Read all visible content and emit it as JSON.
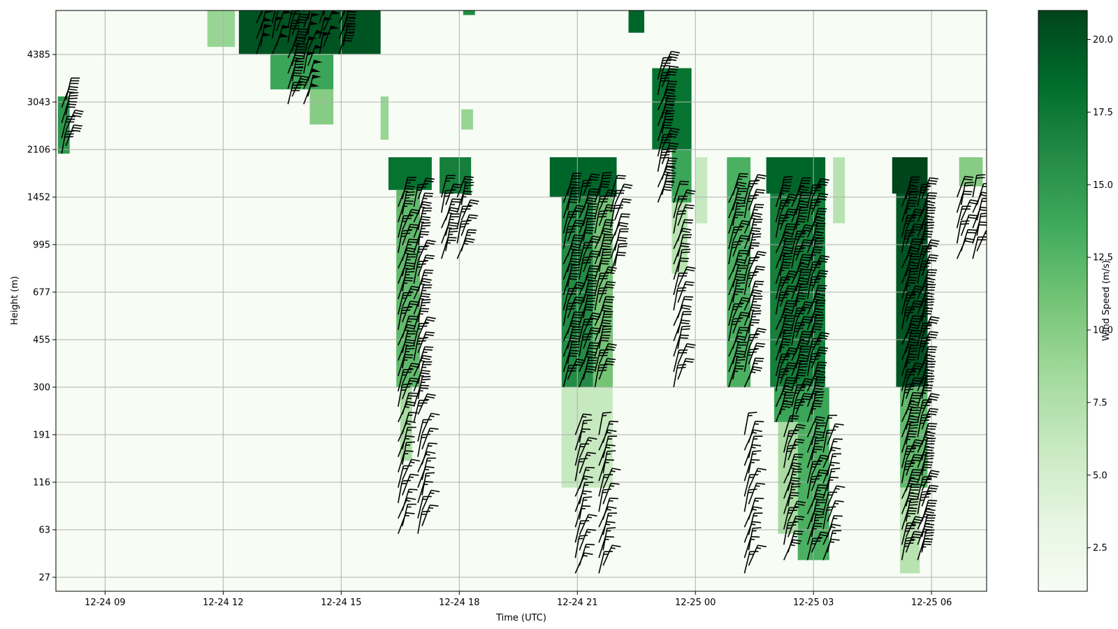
{
  "chart_data": {
    "type": "heatmap",
    "xlabel": "Time (UTC)",
    "ylabel": "Height (m)",
    "x_ticks": [
      "12-24 09",
      "12-24 12",
      "12-24 15",
      "12-24 18",
      "12-24 21",
      "12-25 00",
      "12-25 03",
      "12-25 06"
    ],
    "x_tick_hours": [
      9,
      12,
      15,
      18,
      21,
      24,
      27,
      30
    ],
    "x_range_hours": [
      7.75,
      31.4
    ],
    "y_ticks": [
      "27",
      "63",
      "116",
      "191",
      "300",
      "455",
      "677",
      "995",
      "1452",
      "2106",
      "3043",
      "4385"
    ],
    "y_tick_heights_m": [
      27,
      63,
      116,
      191,
      300,
      455,
      677,
      995,
      1452,
      2106,
      3043,
      4385
    ],
    "colorbar": {
      "label": "Wind Speed (m/s)",
      "range": [
        1.0,
        21.0
      ],
      "ticks": [
        "2.5",
        "5.0",
        "7.5",
        "10.0",
        "12.5",
        "15.0",
        "17.5",
        "20.0"
      ],
      "tick_values": [
        2.5,
        5.0,
        7.5,
        10.0,
        12.5,
        15.0,
        17.5,
        20.0
      ],
      "colormap": "Greens",
      "colors": [
        "#f7fcf5",
        "#e5f5e0",
        "#c7e9c0",
        "#a1d99b",
        "#74c476",
        "#41ab5d",
        "#238b45",
        "#006d2c",
        "#00441b"
      ]
    },
    "grid": true,
    "background_speed": 1.0,
    "regions": [
      {
        "t": [
          7.8,
          8.1
        ],
        "z": [
          2050,
          3200
        ],
        "speed": 15
      },
      {
        "t": [
          11.6,
          12.3
        ],
        "z": [
          4600,
          6200
        ],
        "speed": 9
      },
      {
        "t": [
          12.4,
          16.0
        ],
        "z": [
          4400,
          6200
        ],
        "speed": 20
      },
      {
        "t": [
          13.2,
          14.8
        ],
        "z": [
          3400,
          4400
        ],
        "speed": 14
      },
      {
        "t": [
          14.2,
          14.8
        ],
        "z": [
          2600,
          3400
        ],
        "speed": 10
      },
      {
        "t": [
          16.0,
          16.2
        ],
        "z": [
          2300,
          3200
        ],
        "speed": 9
      },
      {
        "t": [
          16.2,
          17.3
        ],
        "z": [
          1550,
          2000
        ],
        "speed": 18
      },
      {
        "t": [
          16.4,
          17.0
        ],
        "z": [
          300,
          1550
        ],
        "speed": 12
      },
      {
        "t": [
          16.5,
          16.8
        ],
        "z": [
          150,
          300
        ],
        "speed": 8
      },
      {
        "t": [
          17.5,
          18.3
        ],
        "z": [
          1500,
          2000
        ],
        "speed": 17
      },
      {
        "t": [
          18.1,
          18.4
        ],
        "z": [
          5500,
          6200
        ],
        "speed": 16
      },
      {
        "t": [
          18.05,
          18.35
        ],
        "z": [
          2500,
          2900
        ],
        "speed": 9
      },
      {
        "t": [
          20.3,
          22.0
        ],
        "z": [
          1450,
          2000
        ],
        "speed": 19
      },
      {
        "t": [
          20.6,
          21.4
        ],
        "z": [
          300,
          1450
        ],
        "speed": 16
      },
      {
        "t": [
          21.4,
          21.9
        ],
        "z": [
          300,
          1450
        ],
        "speed": 11
      },
      {
        "t": [
          20.6,
          21.9
        ],
        "z": [
          110,
          300
        ],
        "speed": 6
      },
      {
        "t": [
          22.3,
          22.7
        ],
        "z": [
          5000,
          6200
        ],
        "speed": 19
      },
      {
        "t": [
          22.9,
          23.9
        ],
        "z": [
          2100,
          4000
        ],
        "speed": 18
      },
      {
        "t": [
          23.4,
          23.9
        ],
        "z": [
          1400,
          2100
        ],
        "speed": 14
      },
      {
        "t": [
          23.4,
          23.8
        ],
        "z": [
          800,
          1400
        ],
        "speed": 7
      },
      {
        "t": [
          24.8,
          25.4
        ],
        "z": [
          300,
          2000
        ],
        "speed": 13
      },
      {
        "t": [
          24.0,
          24.3
        ],
        "z": [
          1200,
          2000
        ],
        "speed": 6
      },
      {
        "t": [
          25.8,
          27.3
        ],
        "z": [
          1500,
          2000
        ],
        "speed": 19
      },
      {
        "t": [
          25.9,
          27.3
        ],
        "z": [
          300,
          1500
        ],
        "speed": 17
      },
      {
        "t": [
          26.0,
          27.4
        ],
        "z": [
          220,
          300
        ],
        "speed": 14
      },
      {
        "t": [
          26.6,
          27.4
        ],
        "z": [
          40,
          220
        ],
        "speed": 13
      },
      {
        "t": [
          26.1,
          26.6
        ],
        "z": [
          60,
          220
        ],
        "speed": 8
      },
      {
        "t": [
          27.5,
          27.8
        ],
        "z": [
          1200,
          2000
        ],
        "speed": 7
      },
      {
        "t": [
          29.0,
          29.9
        ],
        "z": [
          1500,
          2000
        ],
        "speed": 21
      },
      {
        "t": [
          29.1,
          29.9
        ],
        "z": [
          300,
          1500
        ],
        "speed": 20
      },
      {
        "t": [
          29.2,
          29.9
        ],
        "z": [
          110,
          300
        ],
        "speed": 12
      },
      {
        "t": [
          29.2,
          29.7
        ],
        "z": [
          30,
          110
        ],
        "speed": 7
      },
      {
        "t": [
          30.7,
          31.3
        ],
        "z": [
          1600,
          2000
        ],
        "speed": 10
      }
    ],
    "barb_columns": [
      {
        "t": 7.95,
        "z": [
          2050,
          3300
        ],
        "speed": 15
      },
      {
        "t": 12.9,
        "z": [
          4400,
          6000
        ],
        "speed": 25
      },
      {
        "t": 13.3,
        "z": [
          4400,
          6000
        ],
        "speed": 25
      },
      {
        "t": 13.7,
        "z": [
          3000,
          6000
        ],
        "speed": 20
      },
      {
        "t": 14.1,
        "z": [
          3000,
          6000
        ],
        "speed": 25
      },
      {
        "t": 14.5,
        "z": [
          4400,
          6000
        ],
        "speed": 25
      },
      {
        "t": 15.0,
        "z": [
          4400,
          6000
        ],
        "speed": 20
      },
      {
        "t": 16.5,
        "z": [
          220,
          1500
        ],
        "speed": 12
      },
      {
        "t": 16.9,
        "z": [
          220,
          1500
        ],
        "speed": 12
      },
      {
        "t": 16.5,
        "z": [
          60,
          200
        ],
        "speed": 7
      },
      {
        "t": 17.0,
        "z": [
          60,
          200
        ],
        "speed": 7
      },
      {
        "t": 17.6,
        "z": [
          900,
          1500
        ],
        "speed": 12
      },
      {
        "t": 18.0,
        "z": [
          900,
          1500
        ],
        "speed": 12
      },
      {
        "t": 20.7,
        "z": [
          300,
          1500
        ],
        "speed": 15
      },
      {
        "t": 21.1,
        "z": [
          300,
          1500
        ],
        "speed": 15
      },
      {
        "t": 21.5,
        "z": [
          300,
          1500
        ],
        "speed": 15
      },
      {
        "t": 21.9,
        "z": [
          800,
          1500
        ],
        "speed": 10
      },
      {
        "t": 21.0,
        "z": [
          30,
          200
        ],
        "speed": 7
      },
      {
        "t": 21.6,
        "z": [
          30,
          200
        ],
        "speed": 7
      },
      {
        "t": 23.1,
        "z": [
          1400,
          4000
        ],
        "speed": 20
      },
      {
        "t": 23.5,
        "z": [
          300,
          1400
        ],
        "speed": 10
      },
      {
        "t": 24.9,
        "z": [
          300,
          1500
        ],
        "speed": 12
      },
      {
        "t": 25.3,
        "z": [
          300,
          1500
        ],
        "speed": 12
      },
      {
        "t": 25.3,
        "z": [
          30,
          200
        ],
        "speed": 7
      },
      {
        "t": 26.1,
        "z": [
          220,
          1500
        ],
        "speed": 17
      },
      {
        "t": 26.5,
        "z": [
          220,
          1500
        ],
        "speed": 17
      },
      {
        "t": 26.9,
        "z": [
          220,
          1500
        ],
        "speed": 17
      },
      {
        "t": 26.3,
        "z": [
          40,
          200
        ],
        "speed": 12
      },
      {
        "t": 26.9,
        "z": [
          40,
          200
        ],
        "speed": 12
      },
      {
        "t": 27.3,
        "z": [
          40,
          200
        ],
        "speed": 8
      },
      {
        "t": 29.3,
        "z": [
          40,
          1500
        ],
        "speed": 18
      },
      {
        "t": 29.7,
        "z": [
          40,
          1500
        ],
        "speed": 18
      },
      {
        "t": 30.7,
        "z": [
          900,
          1500
        ],
        "speed": 10
      },
      {
        "t": 31.1,
        "z": [
          900,
          1500
        ],
        "speed": 10
      }
    ]
  }
}
